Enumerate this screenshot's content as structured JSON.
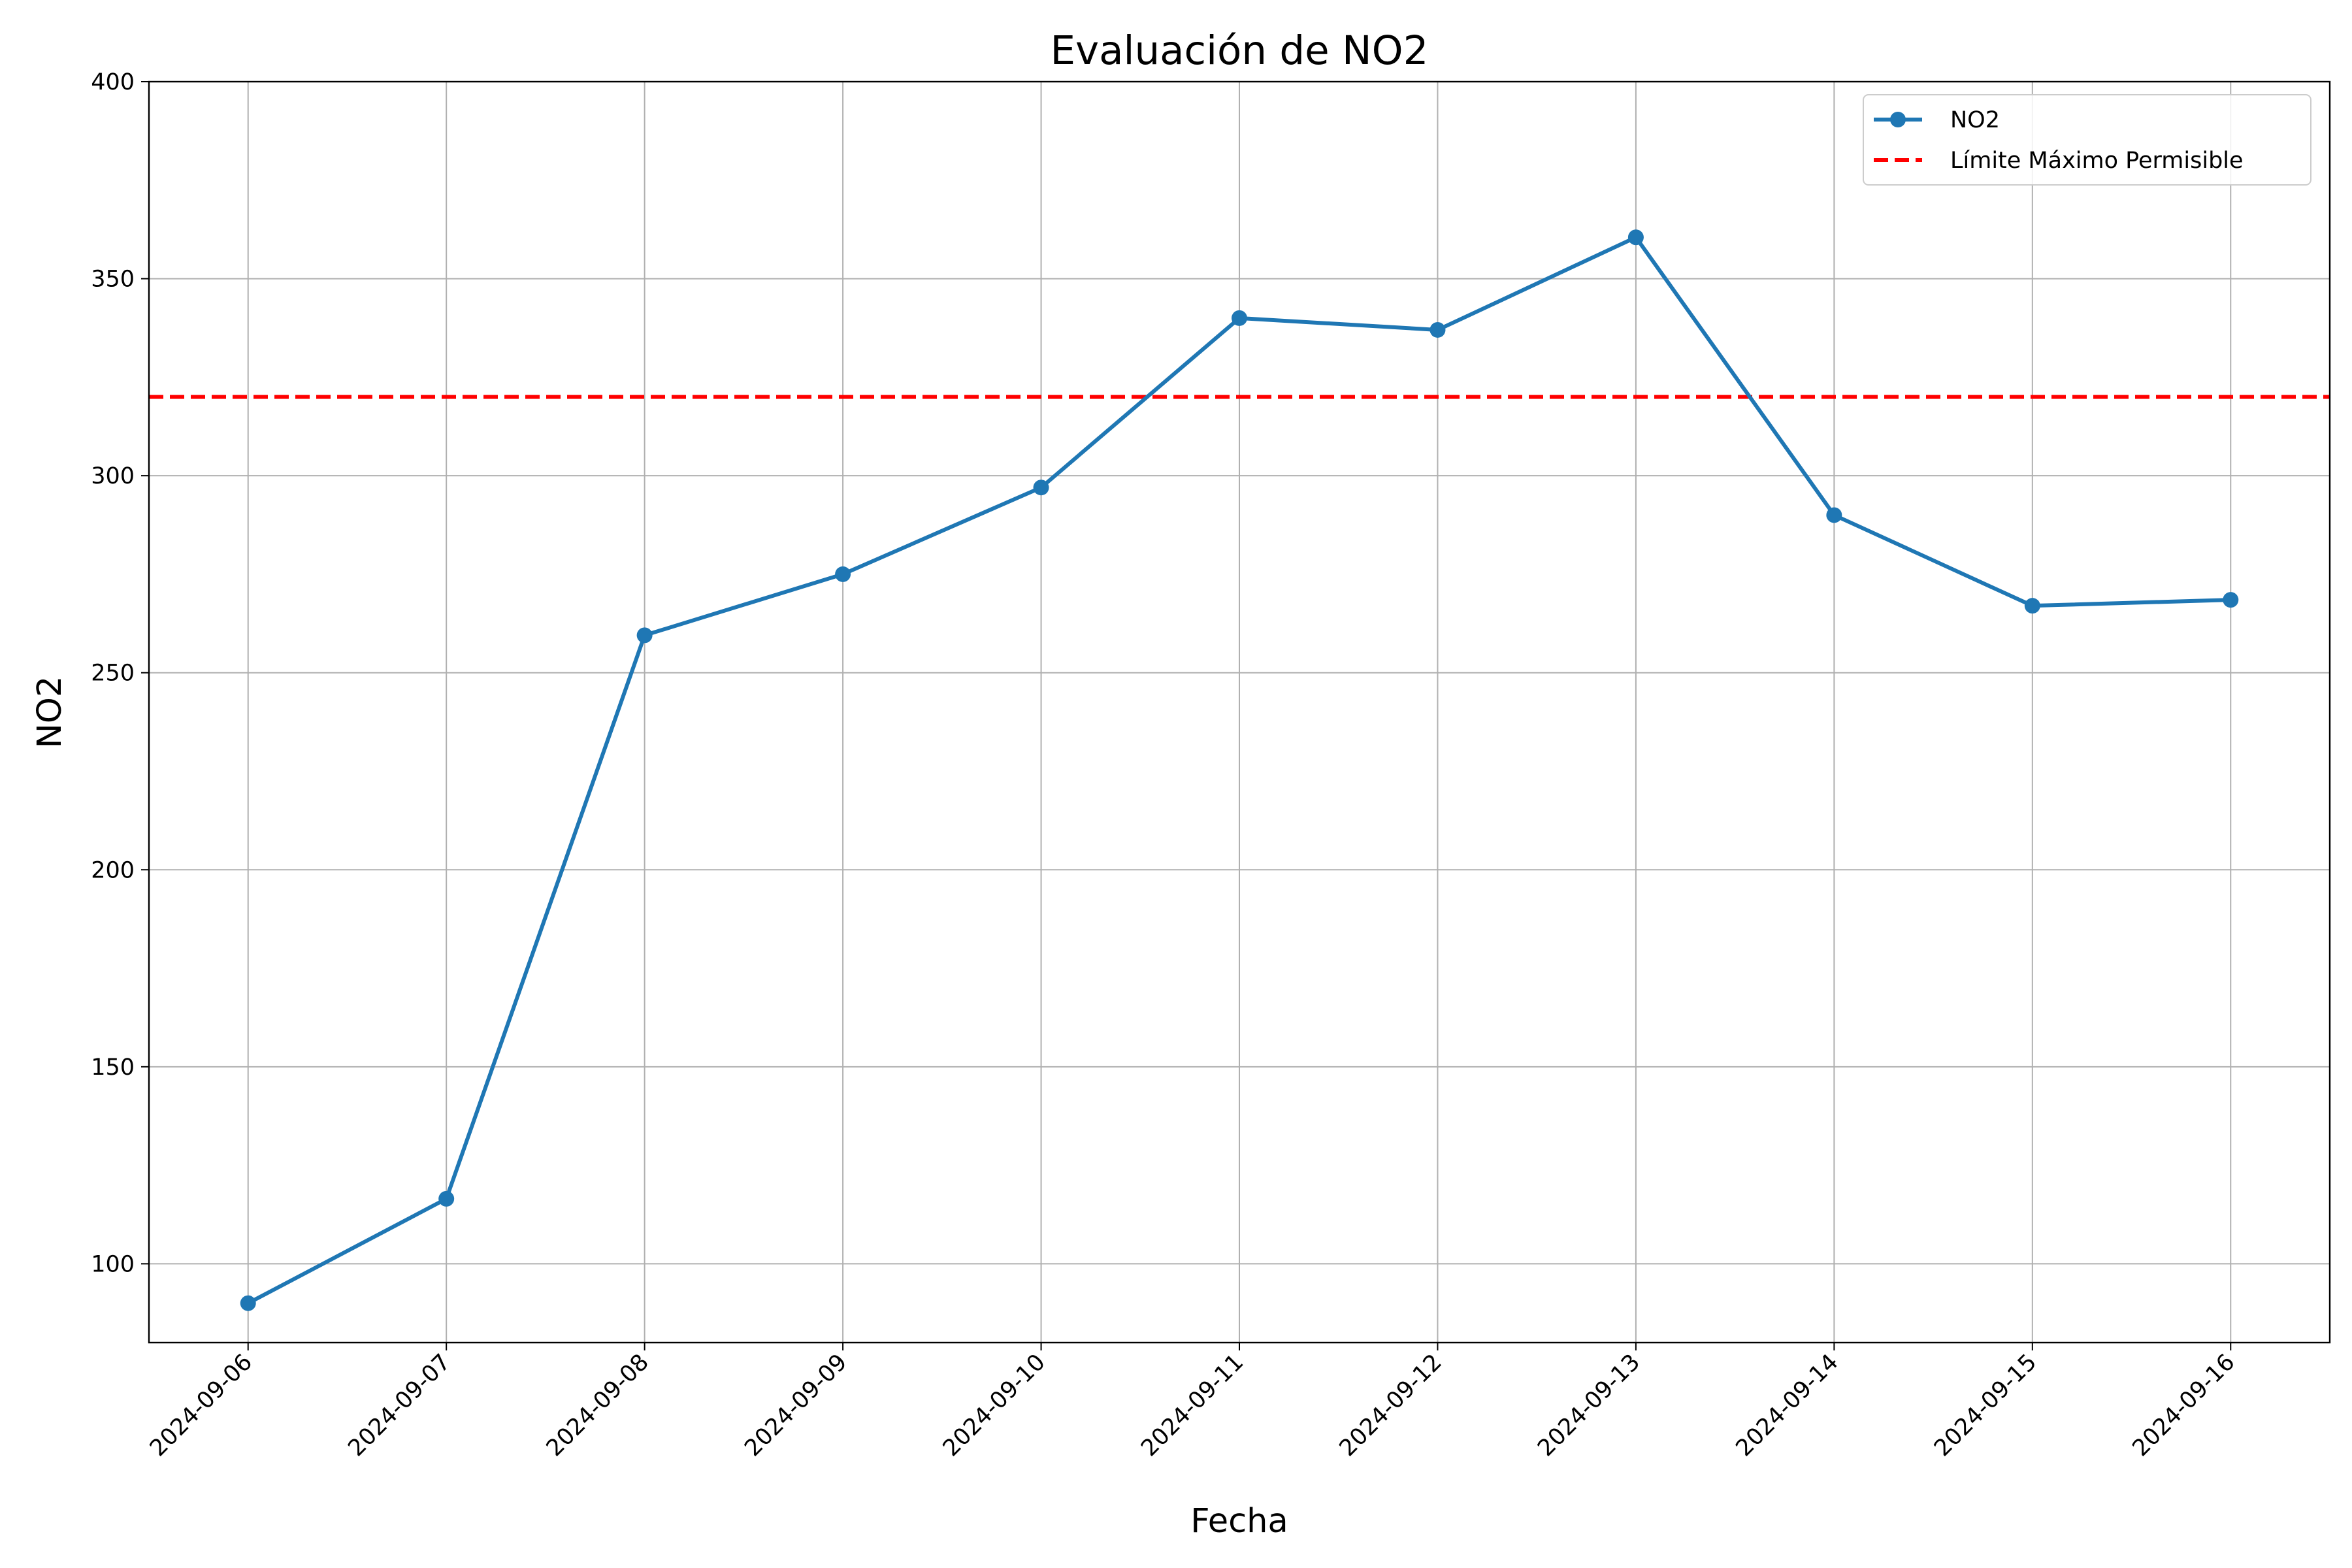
{
  "chart_data": {
    "type": "line",
    "title": "Evaluación de NO2",
    "xlabel": "Fecha",
    "ylabel": "NO2",
    "categories": [
      "2024-09-06",
      "2024-09-07",
      "2024-09-08",
      "2024-09-09",
      "2024-09-10",
      "2024-09-11",
      "2024-09-12",
      "2024-09-13",
      "2024-09-14",
      "2024-09-15",
      "2024-09-16"
    ],
    "series": [
      {
        "name": "NO2",
        "values": [
          90,
          116.5,
          259.5,
          275,
          297,
          340,
          337,
          360.5,
          290,
          267,
          268.5
        ],
        "color": "#1f77b4",
        "marker": "circle"
      }
    ],
    "reference_lines": [
      {
        "name": "Límite Máximo Permisible",
        "value": 320,
        "color": "#ff0000",
        "style": "dashed"
      }
    ],
    "ylim": [
      80,
      400
    ],
    "yticks": [
      100,
      150,
      200,
      250,
      300,
      350,
      400
    ],
    "grid": true,
    "legend": {
      "position": "top-right"
    }
  }
}
